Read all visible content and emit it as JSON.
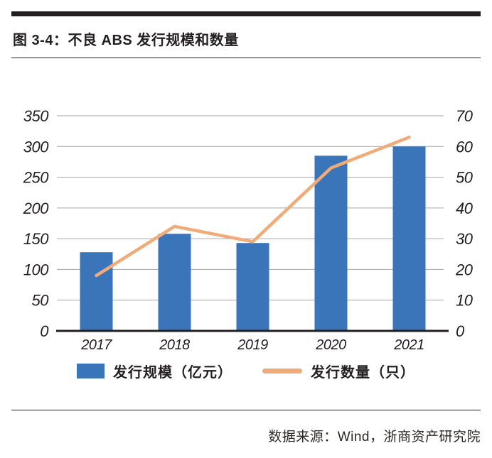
{
  "page": {
    "title": "图 3-4：不良 ABS 发行规模和数量",
    "source": "数据来源：Wind，浙商资产研究院"
  },
  "colors": {
    "bar": "#3a75ba",
    "line": "#f0ab79",
    "grid": "#a6a6a6",
    "axis": "#231f20",
    "text": "#231f20"
  },
  "chart_data": {
    "type": "bar+line combo",
    "title": "不良 ABS 发行规模和数量",
    "categories": [
      "2017",
      "2018",
      "2019",
      "2020",
      "2021"
    ],
    "series": [
      {
        "name": "发行规模（亿元）",
        "type": "bar",
        "axis": "left",
        "values": [
          128,
          158,
          143,
          285,
          300
        ]
      },
      {
        "name": "发行数量（只）",
        "type": "line",
        "axis": "right",
        "values": [
          18,
          34,
          29,
          53,
          63
        ]
      }
    ],
    "left_axis": {
      "min": 0,
      "max": 350,
      "step": 50
    },
    "right_axis": {
      "min": 0,
      "max": 70,
      "step": 10
    },
    "grid": true,
    "legend_position": "bottom"
  }
}
